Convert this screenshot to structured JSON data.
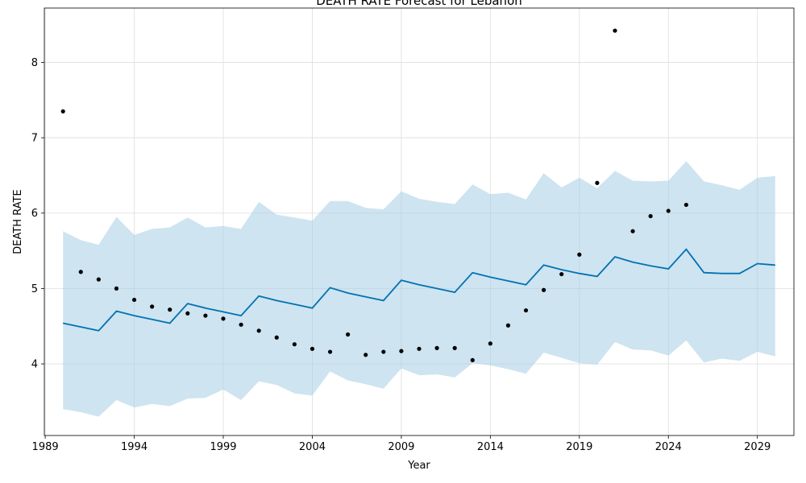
{
  "chart_data": {
    "type": "line",
    "title": "DEATH RATE Forecast for Lebanon",
    "xlabel": "Year",
    "ylabel": "DEATH RATE",
    "xlim": [
      1988.95,
      2031.05
    ],
    "ylim": [
      3.05,
      8.72
    ],
    "x_ticks": [
      1989,
      1994,
      1999,
      2004,
      2009,
      2014,
      2019,
      2024,
      2029
    ],
    "y_ticks": [
      4,
      5,
      6,
      7,
      8
    ],
    "grid": true,
    "colors": {
      "forecast": "#0072b2",
      "band": "#a6cde4",
      "observed": "#000000"
    },
    "series": [
      {
        "kind": "observed",
        "x": [
          1990,
          1991,
          1992,
          1993,
          1994,
          1995,
          1996,
          1997,
          1998,
          1999,
          2000,
          2001,
          2002,
          2003,
          2004,
          2005,
          2006,
          2007,
          2008,
          2009,
          2010,
          2011,
          2012,
          2013,
          2014,
          2015,
          2016,
          2017,
          2018,
          2019,
          2020,
          2021,
          2022,
          2023,
          2024,
          2025
        ],
        "values": [
          7.35,
          5.22,
          5.12,
          5.0,
          4.85,
          4.76,
          4.72,
          4.67,
          4.64,
          4.6,
          4.52,
          4.44,
          4.35,
          4.26,
          4.2,
          4.16,
          4.39,
          4.12,
          4.16,
          4.17,
          4.2,
          4.21,
          4.21,
          4.05,
          4.27,
          4.51,
          4.71,
          4.98,
          5.19,
          5.45,
          6.4,
          8.42,
          5.76,
          5.96,
          6.03,
          6.11
        ]
      },
      {
        "kind": "forecast",
        "x": [
          1990,
          1991,
          1992,
          1993,
          1994,
          1995,
          1996,
          1997,
          1998,
          1999,
          2000,
          2001,
          2002,
          2003,
          2004,
          2005,
          2006,
          2007,
          2008,
          2009,
          2010,
          2011,
          2012,
          2013,
          2014,
          2015,
          2016,
          2017,
          2018,
          2019,
          2020,
          2021,
          2022,
          2023,
          2024,
          2025,
          2026,
          2027,
          2028,
          2029,
          2030
        ],
        "values": [
          4.54,
          4.49,
          4.44,
          4.7,
          4.64,
          4.59,
          4.54,
          4.8,
          4.74,
          4.69,
          4.64,
          4.9,
          4.84,
          4.79,
          4.74,
          5.01,
          4.94,
          4.89,
          4.84,
          5.11,
          5.05,
          5.0,
          4.95,
          5.21,
          5.15,
          5.1,
          5.05,
          5.31,
          5.25,
          5.2,
          5.16,
          5.42,
          5.35,
          5.3,
          5.26,
          5.52,
          5.21,
          5.2,
          5.2,
          5.33,
          5.31
        ],
        "upper": [
          5.76,
          5.64,
          5.58,
          5.95,
          5.71,
          5.79,
          5.81,
          5.94,
          5.81,
          5.83,
          5.79,
          6.15,
          5.98,
          5.94,
          5.9,
          6.16,
          6.16,
          6.07,
          6.05,
          6.29,
          6.19,
          6.15,
          6.12,
          6.38,
          6.25,
          6.27,
          6.18,
          6.53,
          6.34,
          6.47,
          6.33,
          6.56,
          6.43,
          6.42,
          6.43,
          6.69,
          6.42,
          6.37,
          6.31,
          6.47,
          6.49
        ],
        "lower": [
          3.4,
          3.36,
          3.3,
          3.52,
          3.42,
          3.47,
          3.44,
          3.54,
          3.55,
          3.66,
          3.52,
          3.77,
          3.72,
          3.61,
          3.58,
          3.9,
          3.78,
          3.73,
          3.67,
          3.94,
          3.85,
          3.86,
          3.82,
          4.01,
          3.98,
          3.93,
          3.87,
          4.15,
          4.08,
          4.01,
          3.99,
          4.29,
          4.19,
          4.18,
          4.11,
          4.31,
          4.02,
          4.07,
          4.04,
          4.16,
          4.1
        ]
      }
    ]
  }
}
